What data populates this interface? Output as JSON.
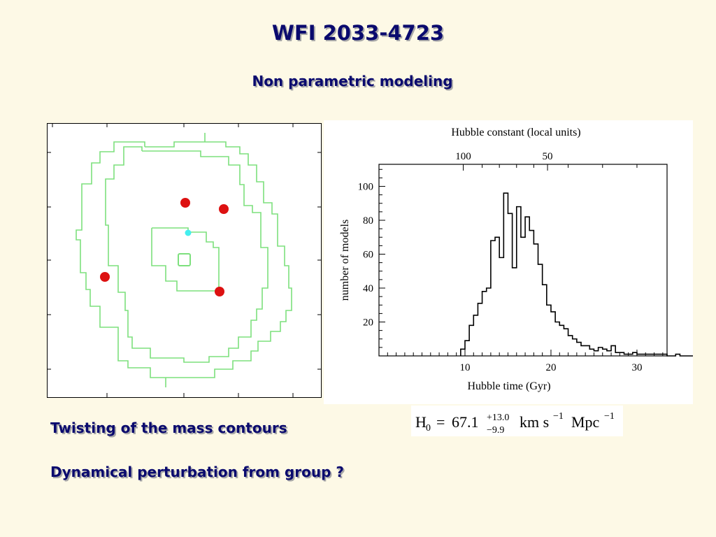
{
  "slide": {
    "title": "WFI 2033-4723",
    "subtitle": "Non parametric modeling",
    "bullets": [
      "Twisting of the mass contours",
      "Dynamical perturbation from group ?"
    ]
  },
  "colors": {
    "background": "#fdf9e6",
    "heading_text": "#0a0a6e",
    "contour": "#7de07d",
    "galaxy_points": "#dd1111",
    "lens_point": "#44eeee"
  },
  "formula": {
    "lhs_symbol": "H",
    "lhs_subscript": "0",
    "equals": "=",
    "value": "67.1",
    "upper_error": "+13.0",
    "lower_error": "−9.9",
    "unit_km_s": "km s",
    "unit_km_s_exp": "−1",
    "unit_mpc": "Mpc",
    "unit_mpc_exp": "−1"
  },
  "chart_data": [
    {
      "type": "contour",
      "title": "",
      "contours": "three nested pixelated mass contours (inner, middle, outer)",
      "markers": [
        {
          "kind": "red-dot",
          "count": 4
        },
        {
          "kind": "cyan-dot",
          "count": 1
        },
        {
          "kind": "open-square",
          "count": 1
        }
      ]
    },
    {
      "type": "bar",
      "style": "step-histogram",
      "title": "",
      "xlabel": "Hubble time (Gyr)",
      "ylabel": "number of models",
      "top_axis_label": "Hubble constant (local units)",
      "xlim": [
        0,
        33.5
      ],
      "ylim": [
        0,
        113
      ],
      "x_ticks": [
        10,
        20,
        30
      ],
      "y_ticks": [
        20,
        40,
        60,
        80,
        100
      ],
      "top_ticks": [
        {
          "label": "100",
          "x": 9.8
        },
        {
          "label": "50",
          "x": 19.6
        }
      ],
      "bin_width": 0.5,
      "bin_start": 9.5,
      "values": [
        4,
        9,
        18,
        24,
        31,
        38,
        40,
        68,
        70,
        58,
        96,
        84,
        52,
        88,
        70,
        82,
        74,
        66,
        54,
        42,
        30,
        26,
        20,
        18,
        16,
        12,
        10,
        8,
        6,
        6,
        4,
        3,
        5,
        4,
        3,
        6,
        2,
        2,
        1,
        1,
        2,
        1,
        1,
        1,
        1,
        1,
        1,
        1,
        0,
        0,
        1,
        0,
        0,
        0,
        0,
        0,
        0,
        1,
        0,
        0,
        0,
        0,
        0,
        1,
        0,
        0,
        0,
        0,
        0,
        1,
        0,
        0,
        0,
        0,
        0,
        1,
        0
      ]
    }
  ]
}
